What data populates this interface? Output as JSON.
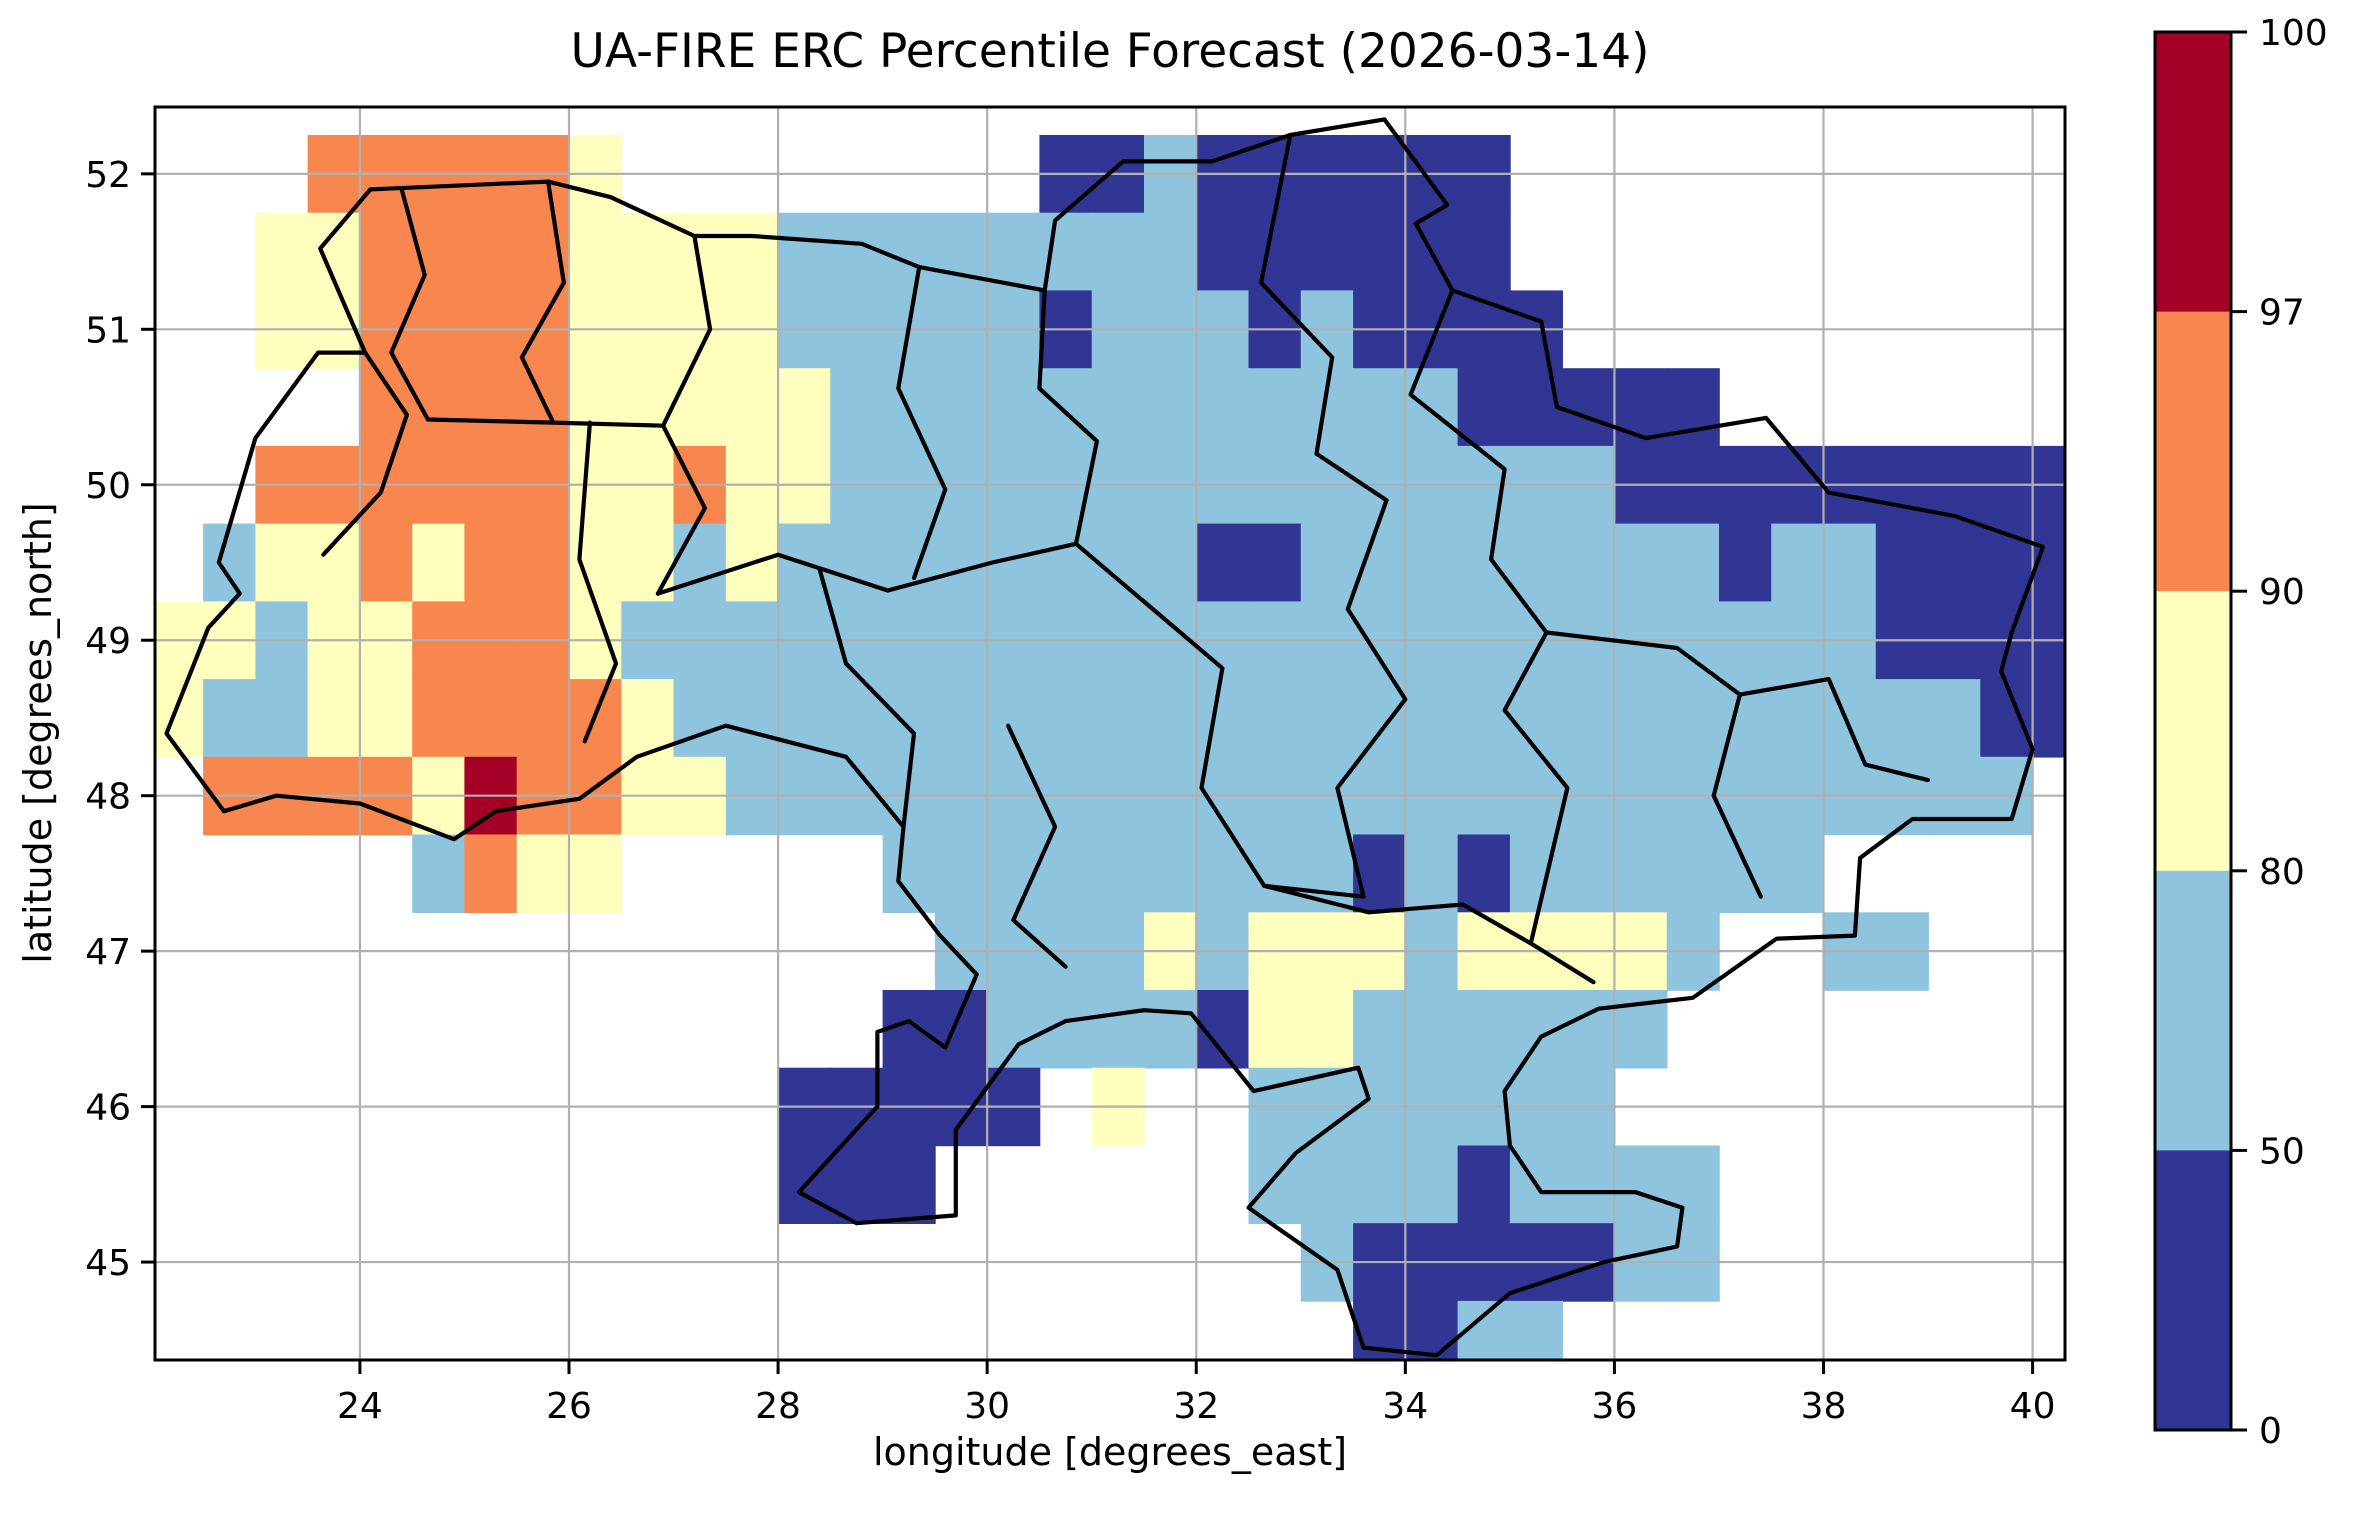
{
  "figure": {
    "title": "UA-FIRE ERC Percentile Forecast (2026-03-14)",
    "xlabel": "longitude [degrees_east]",
    "ylabel": "latitude [degrees_north]",
    "background_color": "#ffffff",
    "gridline_color": "#b0b0b0",
    "border_line_color": "#000000"
  },
  "chart_data": {
    "type": "heatmap",
    "title": "UA-FIRE ERC Percentile Forecast (2026-03-14)",
    "xlabel": "longitude [degrees_east]",
    "ylabel": "latitude [degrees_north]",
    "x_ticks": [
      24,
      26,
      28,
      30,
      32,
      34,
      36,
      38,
      40
    ],
    "y_ticks": [
      52,
      51,
      50,
      49,
      48,
      47,
      46,
      45
    ],
    "xlim": [
      22.04,
      40.31
    ],
    "ylim": [
      44.37,
      52.43
    ],
    "grid": true,
    "legend_position": "right-colorbar",
    "colorbar": {
      "levels": [
        0,
        50,
        80,
        90,
        97,
        100
      ],
      "tick_labels_top_down": [
        "100",
        "97",
        "90",
        "80",
        "50",
        "0"
      ],
      "segment_colors_low_to_high": [
        "#313695",
        "#8ec4dd",
        "#ffffbe",
        "#f7874e",
        "#a50026"
      ],
      "segment_meaning_low_to_high": [
        "0-50",
        "50-80",
        "80-90",
        "90-97",
        "97-100"
      ]
    },
    "heat_grid": {
      "description": "ERC percentile category per 0.5-degree cell; '.'=no data, 1=0-50, 2=50-80, 3=80-90, 4=90-97, 5=97-100",
      "lon_start": 22.0,
      "lon_step": 0.5,
      "lat_start": 52.25,
      "lat_step": -0.5,
      "rows": [
        "...444443........112111111...........",
        "..334444333322222222111111...........",
        "..3344443333222221222121111..........",
        "....44443333322222222222211111.......",
        "..44444433433222222222222222111111111",
        ".233434433232222222211222222221221111",
        "3323344432222222222222222222222221111",
        "3223344443222222222222222222222222211",
        ".44443544332222222222222222222222222.",
        ".....2433.....222222222121222222.....",
        "...............222232333233332..22...",
        "..............112222133222222........",
        "............11111.3..2222222.........",
        "............111......222212222.......",
        "......................21111122.......",
        ".......................1122.........."
      ]
    },
    "borders": {
      "outline": [
        [
          23.62,
          51.52
        ],
        [
          24.1,
          51.9
        ],
        [
          25.8,
          51.95
        ],
        [
          26.4,
          51.85
        ],
        [
          27.2,
          51.6
        ],
        [
          27.75,
          51.6
        ],
        [
          28.8,
          51.55
        ],
        [
          29.35,
          51.4
        ],
        [
          30.55,
          51.25
        ],
        [
          30.65,
          51.7
        ],
        [
          31.3,
          52.08
        ],
        [
          32.15,
          52.08
        ],
        [
          32.9,
          52.25
        ],
        [
          33.8,
          52.35
        ],
        [
          34.4,
          51.8
        ],
        [
          34.1,
          51.68
        ],
        [
          34.45,
          51.25
        ],
        [
          35.3,
          51.05
        ],
        [
          35.45,
          50.5
        ],
        [
          36.3,
          50.3
        ],
        [
          37.45,
          50.43
        ],
        [
          38.05,
          49.95
        ],
        [
          39.25,
          49.8
        ],
        [
          40.1,
          49.6
        ],
        [
          39.8,
          49.05
        ],
        [
          39.7,
          48.8
        ],
        [
          40.0,
          48.3
        ],
        [
          39.8,
          47.85
        ],
        [
          38.85,
          47.85
        ],
        [
          38.35,
          47.6
        ],
        [
          38.3,
          47.1
        ],
        [
          37.55,
          47.08
        ],
        [
          36.75,
          46.7
        ],
        [
          35.85,
          46.63
        ],
        [
          35.3,
          46.45
        ],
        [
          34.95,
          46.1
        ],
        [
          35.0,
          45.75
        ],
        [
          35.3,
          45.45
        ],
        [
          36.2,
          45.45
        ],
        [
          36.65,
          45.35
        ],
        [
          36.6,
          45.1
        ],
        [
          35.9,
          45.0
        ],
        [
          35.0,
          44.8
        ],
        [
          34.3,
          44.4
        ],
        [
          33.6,
          44.45
        ],
        [
          33.35,
          44.95
        ],
        [
          32.5,
          45.35
        ],
        [
          32.95,
          45.7
        ],
        [
          33.65,
          46.05
        ],
        [
          33.55,
          46.25
        ],
        [
          32.55,
          46.1
        ],
        [
          31.95,
          46.6
        ],
        [
          31.5,
          46.62
        ],
        [
          30.75,
          46.55
        ],
        [
          30.3,
          46.4
        ],
        [
          29.7,
          45.85
        ],
        [
          29.7,
          45.3
        ],
        [
          28.75,
          45.25
        ],
        [
          28.2,
          45.45
        ],
        [
          28.95,
          46.0
        ],
        [
          28.95,
          46.48
        ],
        [
          29.25,
          46.55
        ],
        [
          29.6,
          46.38
        ],
        [
          29.9,
          46.85
        ],
        [
          29.55,
          47.1
        ],
        [
          29.15,
          47.45
        ],
        [
          29.2,
          47.8
        ],
        [
          28.65,
          48.25
        ],
        [
          27.5,
          48.45
        ],
        [
          26.65,
          48.25
        ],
        [
          26.1,
          47.98
        ],
        [
          25.3,
          47.9
        ],
        [
          24.9,
          47.72
        ],
        [
          24.0,
          47.95
        ],
        [
          23.2,
          48.0
        ],
        [
          22.7,
          47.9
        ],
        [
          22.15,
          48.4
        ],
        [
          22.55,
          49.08
        ],
        [
          22.85,
          49.3
        ],
        [
          22.65,
          49.5
        ],
        [
          23.0,
          50.3
        ],
        [
          23.6,
          50.85
        ],
        [
          24.05,
          50.85
        ],
        [
          23.62,
          51.52
        ]
      ],
      "internal": [
        [
          [
            24.4,
            51.9
          ],
          [
            24.62,
            51.35
          ],
          [
            24.3,
            50.85
          ],
          [
            24.65,
            50.42
          ]
        ],
        [
          [
            25.8,
            51.95
          ],
          [
            25.95,
            51.3
          ],
          [
            25.55,
            50.82
          ],
          [
            25.85,
            50.4
          ]
        ],
        [
          [
            27.2,
            51.6
          ],
          [
            27.35,
            51.0
          ],
          [
            26.9,
            50.38
          ],
          [
            27.3,
            49.85
          ],
          [
            26.85,
            49.3
          ]
        ],
        [
          [
            29.35,
            51.4
          ],
          [
            29.15,
            50.62
          ],
          [
            29.6,
            49.97
          ],
          [
            29.3,
            49.4
          ]
        ],
        [
          [
            30.55,
            51.25
          ],
          [
            30.5,
            50.62
          ],
          [
            31.05,
            50.28
          ],
          [
            30.85,
            49.62
          ],
          [
            31.55,
            49.22
          ]
        ],
        [
          [
            32.9,
            52.25
          ],
          [
            32.62,
            51.3
          ],
          [
            33.3,
            50.82
          ],
          [
            33.15,
            50.2
          ]
        ],
        [
          [
            34.45,
            51.25
          ],
          [
            34.05,
            50.58
          ],
          [
            34.95,
            50.1
          ],
          [
            34.82,
            49.52
          ]
        ],
        [
          [
            33.15,
            50.2
          ],
          [
            33.82,
            49.9
          ],
          [
            33.45,
            49.2
          ],
          [
            34.0,
            48.62
          ],
          [
            33.35,
            48.05
          ],
          [
            33.6,
            47.35
          ]
        ],
        [
          [
            24.65,
            50.42
          ],
          [
            25.85,
            50.4
          ],
          [
            26.9,
            50.38
          ]
        ],
        [
          [
            24.05,
            50.85
          ],
          [
            24.45,
            50.45
          ],
          [
            24.2,
            49.95
          ],
          [
            23.65,
            49.55
          ]
        ],
        [
          [
            26.2,
            50.4
          ],
          [
            26.1,
            49.52
          ],
          [
            26.45,
            48.85
          ],
          [
            26.15,
            48.35
          ]
        ],
        [
          [
            26.85,
            49.3
          ],
          [
            28.0,
            49.55
          ],
          [
            29.05,
            49.32
          ],
          [
            30.05,
            49.5
          ],
          [
            30.85,
            49.62
          ]
        ],
        [
          [
            28.4,
            49.45
          ],
          [
            28.65,
            48.85
          ],
          [
            29.3,
            48.4
          ],
          [
            29.2,
            47.8
          ]
        ],
        [
          [
            31.55,
            49.22
          ],
          [
            32.25,
            48.82
          ],
          [
            32.05,
            48.05
          ],
          [
            32.65,
            47.42
          ]
        ],
        [
          [
            32.65,
            47.42
          ],
          [
            33.65,
            47.25
          ],
          [
            34.55,
            47.3
          ],
          [
            35.2,
            47.05
          ]
        ],
        [
          [
            34.82,
            49.52
          ],
          [
            35.35,
            49.05
          ],
          [
            34.95,
            48.55
          ],
          [
            35.55,
            48.05
          ],
          [
            35.2,
            47.05
          ]
        ],
        [
          [
            35.35,
            49.05
          ],
          [
            36.6,
            48.95
          ],
          [
            37.2,
            48.65
          ],
          [
            36.95,
            48.0
          ],
          [
            37.4,
            47.35
          ]
        ],
        [
          [
            37.2,
            48.65
          ],
          [
            38.05,
            48.75
          ],
          [
            38.4,
            48.2
          ],
          [
            39.0,
            48.1
          ]
        ],
        [
          [
            30.2,
            48.45
          ],
          [
            30.65,
            47.8
          ],
          [
            30.25,
            47.2
          ],
          [
            30.75,
            46.9
          ]
        ],
        [
          [
            35.2,
            47.05
          ],
          [
            35.8,
            46.8
          ]
        ],
        [
          [
            33.6,
            47.35
          ],
          [
            32.65,
            47.42
          ]
        ]
      ]
    }
  }
}
